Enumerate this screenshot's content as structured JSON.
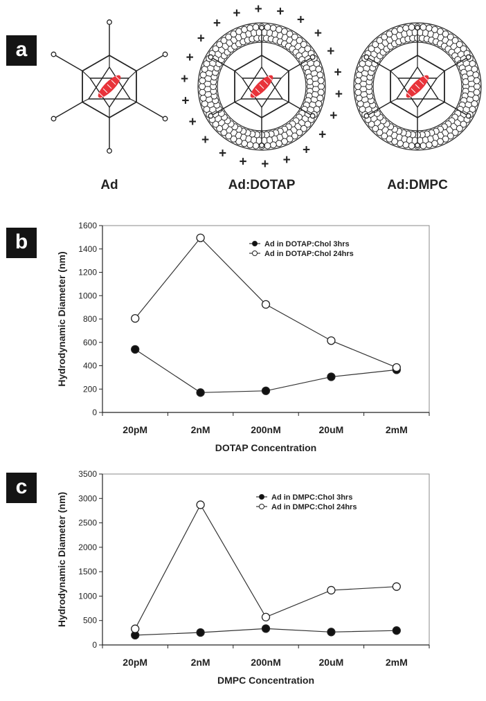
{
  "panels": [
    {
      "letter": "a"
    },
    {
      "letter": "b"
    },
    {
      "letter": "c"
    }
  ],
  "diagrams": [
    {
      "caption": "Ad",
      "coated": false,
      "charged": false
    },
    {
      "caption": "Ad:DOTAP",
      "coated": true,
      "charged": true
    },
    {
      "caption": "Ad:DMPC",
      "coated": true,
      "charged": false
    }
  ],
  "charge_symbol": "+",
  "colors": {
    "highlight": "#e8333a",
    "line": "#222222"
  },
  "chart_data": [
    {
      "type": "line",
      "categories": [
        "20pM",
        "2nM",
        "200nM",
        "20uM",
        "2mM"
      ],
      "xlabel": "DOTAP Concentration",
      "ylabel": "Hydrodynamic Diameter (nm)",
      "ylim": [
        0,
        1600
      ],
      "yticks": [
        "0",
        "200",
        "400",
        "600",
        "800",
        "1000",
        "1200",
        "1400",
        "1600"
      ],
      "legend_position": "top-right",
      "series": [
        {
          "name": "Ad in DOTAP:Chol 3hrs",
          "marker": "filled",
          "values": [
            540,
            170,
            185,
            305,
            365
          ]
        },
        {
          "name": "Ad in DOTAP:Chol 24hrs",
          "marker": "open",
          "values": [
            805,
            1495,
            925,
            615,
            385
          ]
        }
      ]
    },
    {
      "type": "line",
      "categories": [
        "20pM",
        "2nM",
        "200nM",
        "20uM",
        "2mM"
      ],
      "xlabel": "DMPC Concentration",
      "ylabel": "Hydrodynamic Diameter (nm)",
      "ylim": [
        0,
        3500
      ],
      "yticks": [
        "0",
        "500",
        "1000",
        "1500",
        "2000",
        "2500",
        "3000",
        "3500"
      ],
      "legend_position": "top-right",
      "series": [
        {
          "name": "Ad in DMPC:Chol 3hrs",
          "marker": "filled",
          "values": [
            200,
            255,
            335,
            265,
            295
          ]
        },
        {
          "name": "Ad in DMPC:Chol 24hrs",
          "marker": "open",
          "values": [
            330,
            2870,
            570,
            1120,
            1195
          ]
        }
      ]
    }
  ]
}
